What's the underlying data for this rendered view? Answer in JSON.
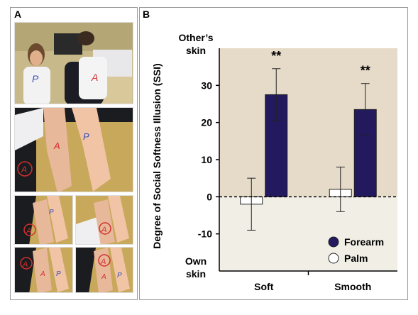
{
  "figure": {
    "panel_a_letter": "A",
    "panel_b_letter": "B",
    "photo_text": {
      "label_a": "A",
      "label_p": "P"
    }
  },
  "chart_data": {
    "type": "bar",
    "ylabel": "Degree of Social Softness Illusion (SSI)",
    "top_annotation": [
      "Other’s",
      "skin"
    ],
    "bottom_annotation": [
      "Own",
      "skin"
    ],
    "categories": [
      "Soft",
      "Smooth"
    ],
    "ylim": [
      -20,
      40
    ],
    "yticks": [
      -10,
      0,
      10,
      20,
      30
    ],
    "series": [
      {
        "name": "Palm",
        "color": "#ffffff",
        "values": [
          -2,
          2
        ],
        "errors": [
          7,
          6
        ]
      },
      {
        "name": "Forearm",
        "color": "#23195e",
        "values": [
          27.5,
          23.5
        ],
        "errors": [
          7,
          7
        ]
      }
    ],
    "significance": [
      "**",
      "**"
    ],
    "legend": {
      "position": "bottom-right",
      "order": [
        "Forearm",
        "Palm"
      ]
    },
    "background_colors": {
      "above_zero": "#e6dbc9",
      "below_zero": "#f1eee6"
    }
  }
}
